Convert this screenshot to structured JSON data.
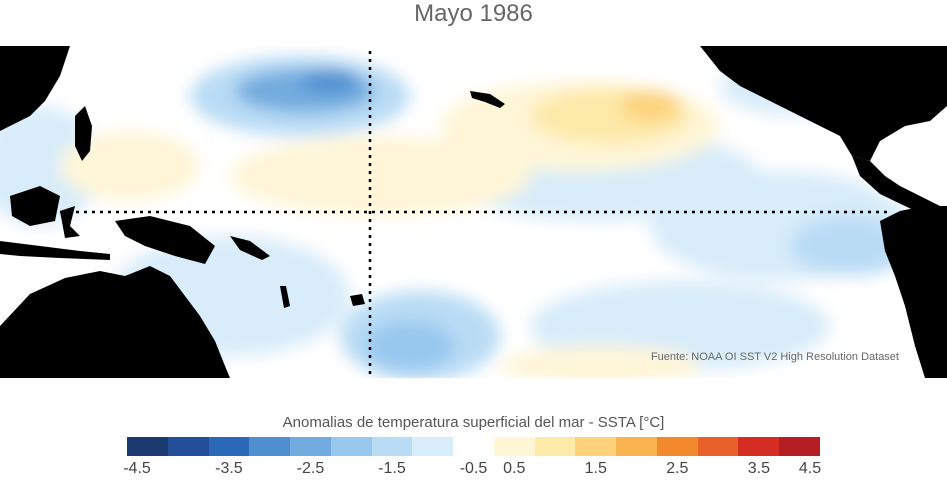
{
  "title": "Mayo 1986",
  "source": "Fuente: NOAA OI SST V2 High Resolution Dataset",
  "colorbar": {
    "title": "Anomalias de temperatura superficial del mar - SSTA  [°C]",
    "tick_labels": [
      "-4.5",
      "-3.5",
      "-2.5",
      "-1.5",
      "-0.5",
      "0.5",
      "1.5",
      "2.5",
      "3.5",
      "4.5"
    ],
    "colors": [
      "#1b3a70",
      "#234f9a",
      "#2b68b8",
      "#4f8fd0",
      "#72acdf",
      "#98c8ee",
      "#b9dcf5",
      "#d8ecf9",
      "#ffffff",
      "#fff6d8",
      "#fde9a8",
      "#fcd27a",
      "#f8b24e",
      "#f28a2c",
      "#e8612a",
      "#d42e24",
      "#b51e22"
    ]
  },
  "map_colors": {
    "land": "#000000",
    "light_blue": "#d8ecf9",
    "mid_blue": "#b9dcf5",
    "blue": "#98c8ee",
    "dark_blue": "#72acdf",
    "cream": "#fff6d8",
    "light_orange": "#fde9a8",
    "orange": "#fcd27a",
    "dark_orange": "#f8b24e"
  }
}
